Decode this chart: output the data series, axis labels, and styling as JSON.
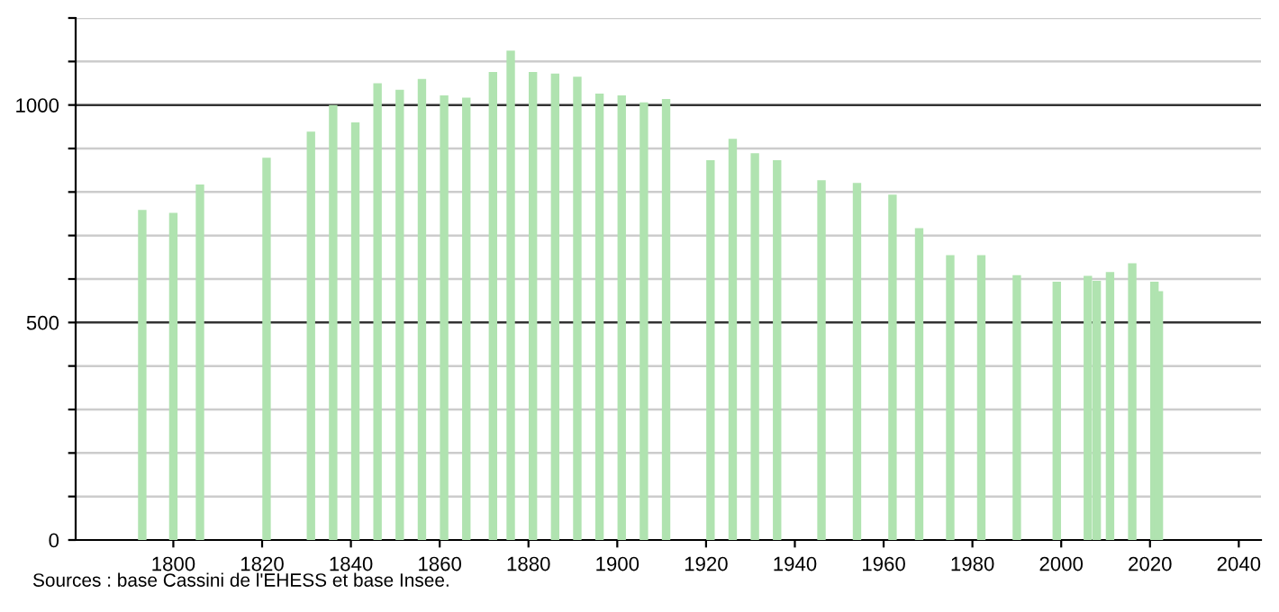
{
  "chart_data": {
    "type": "bar",
    "x": [
      1793,
      1800,
      1806,
      1821,
      1831,
      1836,
      1841,
      1846,
      1851,
      1856,
      1861,
      1866,
      1872,
      1876,
      1881,
      1886,
      1891,
      1896,
      1901,
      1906,
      1911,
      1921,
      1926,
      1931,
      1936,
      1946,
      1954,
      1962,
      1968,
      1975,
      1982,
      1990,
      1999,
      2006,
      2008,
      2011,
      2016,
      2021,
      2022
    ],
    "values": [
      759,
      752,
      817,
      879,
      939,
      1000,
      960,
      1050,
      1035,
      1060,
      1022,
      1017,
      1076,
      1125,
      1076,
      1072,
      1065,
      1026,
      1022,
      1006,
      1014,
      873,
      922,
      889,
      873,
      827,
      821,
      794,
      717,
      655,
      655,
      609,
      594,
      607,
      596,
      616,
      636,
      594,
      572
    ],
    "color": "#b0e3b0",
    "xlim": [
      1778,
      2045
    ],
    "xticks": [
      1800,
      1820,
      1840,
      1860,
      1880,
      1900,
      1920,
      1940,
      1960,
      1980,
      2000,
      2020,
      2040
    ],
    "ylim": [
      0,
      1200
    ],
    "yticks": [
      0,
      {
        "value": 100,
        "label": null
      },
      {
        "value": 200,
        "label": null
      },
      {
        "value": 300,
        "label": null
      },
      {
        "value": 400,
        "label": null
      },
      500,
      {
        "value": 600,
        "label": null
      },
      {
        "value": 700,
        "label": null
      },
      {
        "value": 800,
        "label": null
      },
      {
        "value": 900,
        "label": null
      },
      1000,
      {
        "value": 1100,
        "label": null
      },
      {
        "value": 1200,
        "label": null
      }
    ],
    "grid": "y",
    "annotations": [
      "Sources : base Cassini de l'EHESS et base Insee."
    ]
  }
}
